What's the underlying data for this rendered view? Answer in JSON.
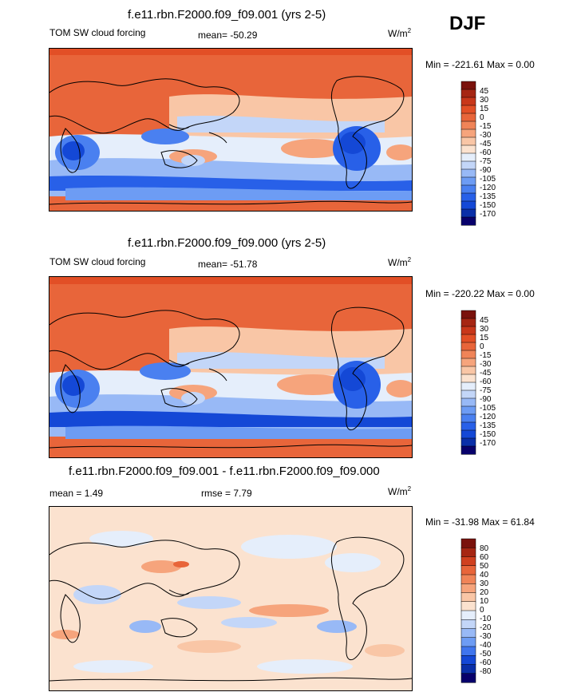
{
  "season": "DJF",
  "colors": {
    "levels_sw": [
      "#08006b",
      "#0a2fa8",
      "#1448d6",
      "#2860e8",
      "#4a80f0",
      "#6d9cf4",
      "#98b9f6",
      "#c3d6f8",
      "#e5eefb",
      "#fbe2cf",
      "#f9c6a6",
      "#f6a47c",
      "#f08458",
      "#e8653a",
      "#e24f26",
      "#c8371a",
      "#a62613",
      "#7a120c"
    ],
    "levels_diff": [
      "#08006b",
      "#0a2fa8",
      "#1448d6",
      "#3f75ee",
      "#6d9cf4",
      "#98b9f6",
      "#c3d6f8",
      "#e5eefb",
      "#fbe2cf",
      "#f9c6a6",
      "#f6a47c",
      "#f08458",
      "#e8653a",
      "#d0401f",
      "#a62613",
      "#7a120c"
    ],
    "land_outline": "#000000"
  },
  "chart_data": [
    {
      "type": "heatmap",
      "title": "f.e11.rbn.F2000.f09_f09.001 (yrs 2-5)",
      "variable": "TOM SW cloud forcing",
      "mean_label": "mean= -50.29",
      "units": "W/m",
      "units_exp": "2",
      "minmax_label": "Min = -221.61 Max =   0.00",
      "colorbar_labels": [
        "45",
        "30",
        "15",
        "0",
        "-15",
        "-30",
        "-45",
        "-60",
        "-75",
        "-90",
        "-105",
        "-120",
        "-135",
        "-150",
        "-170"
      ]
    },
    {
      "type": "heatmap",
      "title": "f.e11.rbn.F2000.f09_f09.000 (yrs 2-5)",
      "variable": "TOM SW cloud forcing",
      "mean_label": "mean= -51.78",
      "units": "W/m",
      "units_exp": "2",
      "minmax_label": "Min = -220.22 Max =   0.00",
      "colorbar_labels": [
        "45",
        "30",
        "15",
        "0",
        "-15",
        "-30",
        "-45",
        "-60",
        "-75",
        "-90",
        "-105",
        "-120",
        "-135",
        "-150",
        "-170"
      ]
    },
    {
      "type": "heatmap",
      "title": "f.e11.rbn.F2000.f09_f09.001 - f.e11.rbn.F2000.f09_f09.000",
      "mean_label": "mean =   1.49",
      "rmse_label": "rmse =   7.79",
      "units": "W/m",
      "units_exp": "2",
      "minmax_label": "Min = -31.98 Max =  61.84",
      "colorbar_labels": [
        "80",
        "60",
        "50",
        "40",
        "30",
        "20",
        "10",
        "0",
        "-10",
        "-20",
        "-30",
        "-40",
        "-50",
        "-60",
        "-80"
      ]
    }
  ]
}
